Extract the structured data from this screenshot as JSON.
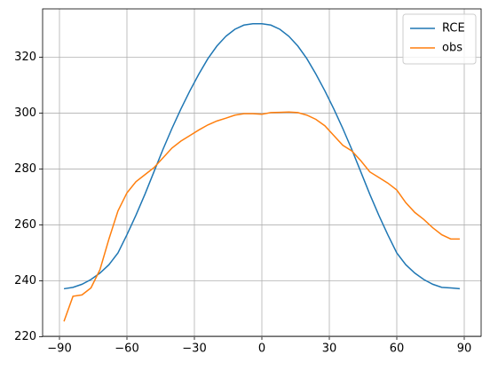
{
  "chart_data": {
    "type": "line",
    "x": [
      -88,
      -84,
      -80,
      -76,
      -72,
      -68,
      -64,
      -60,
      -56,
      -52,
      -48,
      -44,
      -40,
      -36,
      -32,
      -28,
      -24,
      -20,
      -16,
      -12,
      -8,
      -4,
      0,
      4,
      8,
      12,
      16,
      20,
      24,
      28,
      32,
      36,
      40,
      44,
      48,
      52,
      56,
      60,
      64,
      68,
      72,
      76,
      80,
      84,
      88
    ],
    "series": [
      {
        "name": "RCE",
        "color": "#1f77b4",
        "values": [
          237.2,
          237.7,
          238.8,
          240.5,
          242.8,
          245.8,
          250,
          256.5,
          263.5,
          271,
          279,
          287,
          294.5,
          301.5,
          308,
          314,
          319.5,
          324,
          327.5,
          330,
          331.5,
          332,
          332,
          331.5,
          330,
          327.5,
          324,
          319.5,
          314,
          308,
          301.5,
          294.5,
          287,
          279,
          271,
          263.5,
          256.5,
          250,
          245.8,
          242.8,
          240.5,
          238.8,
          237.7,
          237.5,
          237.2
        ]
      },
      {
        "name": "obs",
        "color": "#ff7f0e",
        "values": [
          225.5,
          234.5,
          235,
          237.5,
          244,
          255,
          265,
          271.5,
          275.5,
          278,
          280.5,
          284,
          287.5,
          290,
          292,
          294,
          295.8,
          297.2,
          298.2,
          299.3,
          299.8,
          299.8,
          299.6,
          300.2,
          300.3,
          300.4,
          300.2,
          299.3,
          297.8,
          295.5,
          292,
          288.5,
          286.5,
          283,
          279,
          277,
          275,
          272.5,
          268,
          264.5,
          262,
          259,
          256.5,
          255,
          255
        ]
      }
    ],
    "xlim": [
      -97.5,
      97.5
    ],
    "ylim": [
      220.2,
      337.3
    ],
    "xticks": [
      {
        "value": -90,
        "label": "−90"
      },
      {
        "value": -60,
        "label": "−60"
      },
      {
        "value": -30,
        "label": "−30"
      },
      0,
      30,
      60,
      90
    ],
    "yticks": [
      220,
      240,
      260,
      280,
      300,
      320
    ],
    "grid": true,
    "legend": "upper right"
  }
}
